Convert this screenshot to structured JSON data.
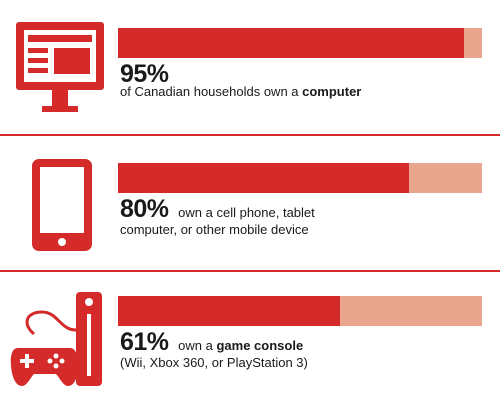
{
  "colors": {
    "accent": "#d42a2a",
    "remainder": "#eaa58e",
    "divider": "#d42a2a"
  },
  "chart_data": {
    "type": "bar",
    "orientation": "horizontal",
    "stacked_to": 100,
    "ylim": [
      0,
      100
    ],
    "categories": [
      "of Canadian households own a computer",
      "own a cell phone, tablet computer, or other mobile device",
      "own a game console (Wii, Xbox 360, or PlayStation 3)"
    ],
    "values": [
      95,
      80,
      61
    ],
    "title": "",
    "xlabel": "",
    "ylabel": ""
  },
  "rows": [
    {
      "icon": "computer-monitor-icon",
      "percent": "95%",
      "text_before": "of Canadian households own a ",
      "text_bold": "computer",
      "text_after": ""
    },
    {
      "icon": "tablet-icon",
      "percent": "80%",
      "text_before": "own a cell phone, tablet",
      "text_bold": "",
      "text_after": "computer, or other mobile device"
    },
    {
      "icon": "game-console-icon",
      "percent": "61%",
      "text_before": "own a ",
      "text_bold": "game console",
      "text_after": "(Wii, Xbox 360, or PlayStation 3)"
    }
  ]
}
